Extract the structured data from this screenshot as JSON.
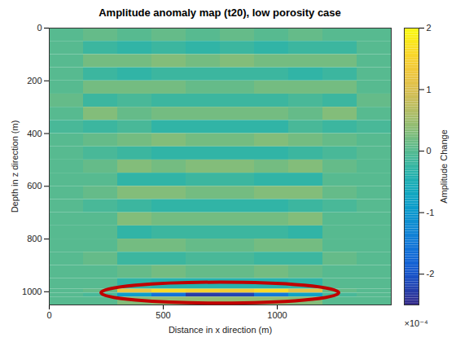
{
  "chart_data": {
    "type": "heatmap",
    "title": "Amplitude anomaly map (t20), low porosity case",
    "x_label": "Distance in x direction (m)",
    "y_label": "Depth in z direction (m)",
    "xlim": [
      0,
      1500
    ],
    "xticks": [
      0,
      500,
      1000
    ],
    "ylim": [
      1050,
      0
    ],
    "yticks": [
      0,
      200,
      400,
      600,
      800,
      1000
    ],
    "x_edges": [
      0,
      150,
      300,
      450,
      600,
      750,
      900,
      1050,
      1200,
      1350,
      1500
    ],
    "z_edges": [
      0,
      50,
      100,
      150,
      200,
      250,
      300,
      350,
      400,
      450,
      500,
      550,
      600,
      650,
      700,
      750,
      800,
      850,
      900,
      950,
      990,
      1005,
      1020,
      1050
    ],
    "cells": [
      [
        0,
        0.1,
        0,
        0.1,
        0,
        0.1,
        0,
        0.1,
        0,
        0
      ],
      [
        0,
        -0.2,
        -0.3,
        -0.2,
        -0.3,
        -0.2,
        -0.3,
        -0.2,
        -0.2,
        0
      ],
      [
        0,
        0.2,
        0.2,
        0.3,
        0.2,
        0.3,
        0.2,
        0.2,
        0.2,
        0
      ],
      [
        0,
        -0.2,
        -0.3,
        -0.2,
        -0.2,
        -0.2,
        -0.2,
        -0.3,
        -0.2,
        0
      ],
      [
        0,
        0.2,
        0.2,
        0.2,
        0.1,
        0.1,
        0.2,
        0.2,
        0.2,
        0
      ],
      [
        0.1,
        -0.2,
        -0.1,
        -0.2,
        -0.2,
        -0.2,
        -0.2,
        -0.1,
        -0.2,
        0.1
      ],
      [
        0,
        0.3,
        0.1,
        0.2,
        0.2,
        0.2,
        0.2,
        0.1,
        0.3,
        0
      ],
      [
        -0.1,
        -0.2,
        -0.1,
        -0.3,
        -0.3,
        -0.3,
        -0.3,
        -0.1,
        -0.2,
        -0.1
      ],
      [
        0,
        0.1,
        0.2,
        0.3,
        0.2,
        0.2,
        0.3,
        0.2,
        0.1,
        0
      ],
      [
        0,
        -0.1,
        -0.2,
        -0.3,
        -0.3,
        -0.3,
        -0.3,
        -0.2,
        -0.1,
        0
      ],
      [
        0,
        0.1,
        0.3,
        0.2,
        0.3,
        0.3,
        0.2,
        0.3,
        0.1,
        0
      ],
      [
        0,
        0,
        -0.3,
        -0.3,
        -0.2,
        -0.2,
        -0.3,
        -0.3,
        0,
        0
      ],
      [
        0,
        0.1,
        0.3,
        0.3,
        0.2,
        0.2,
        0.3,
        0.3,
        0.1,
        0
      ],
      [
        0,
        -0.1,
        -0.2,
        -0.3,
        -0.3,
        -0.3,
        -0.3,
        -0.2,
        -0.1,
        0
      ],
      [
        0,
        0,
        0.3,
        0.2,
        0.2,
        0.2,
        0.2,
        0.3,
        0,
        0
      ],
      [
        0,
        0,
        -0.3,
        -0.2,
        -0.2,
        -0.2,
        -0.2,
        -0.3,
        0,
        0
      ],
      [
        0,
        0,
        0.2,
        0.2,
        0.1,
        0.1,
        0.2,
        0.2,
        0,
        0
      ],
      [
        0,
        0.1,
        -0.2,
        -0.2,
        -0.1,
        -0.1,
        -0.2,
        -0.2,
        0.1,
        0
      ],
      [
        0,
        0,
        0.1,
        0.2,
        0.1,
        0.1,
        0.2,
        0.1,
        0,
        0
      ],
      [
        0,
        0,
        -0.3,
        -0.4,
        -0.4,
        -0.4,
        -0.4,
        -0.3,
        0,
        0
      ],
      [
        0,
        0.1,
        1.2,
        1.6,
        1.5,
        1.4,
        1.6,
        1.1,
        0.1,
        0
      ],
      [
        0,
        -0.1,
        -0.9,
        -1.6,
        -2.3,
        -2.2,
        -1.5,
        -0.8,
        -0.1,
        0
      ],
      [
        0,
        0,
        0.3,
        0.4,
        0.4,
        0.4,
        0.4,
        0.3,
        0,
        0
      ]
    ],
    "colorbar": {
      "label": "Amplitude Change",
      "range": [
        -2.5,
        2
      ],
      "ticks": [
        2,
        1,
        0,
        -1,
        -2
      ],
      "multiplier": "×10⁻⁴"
    }
  }
}
